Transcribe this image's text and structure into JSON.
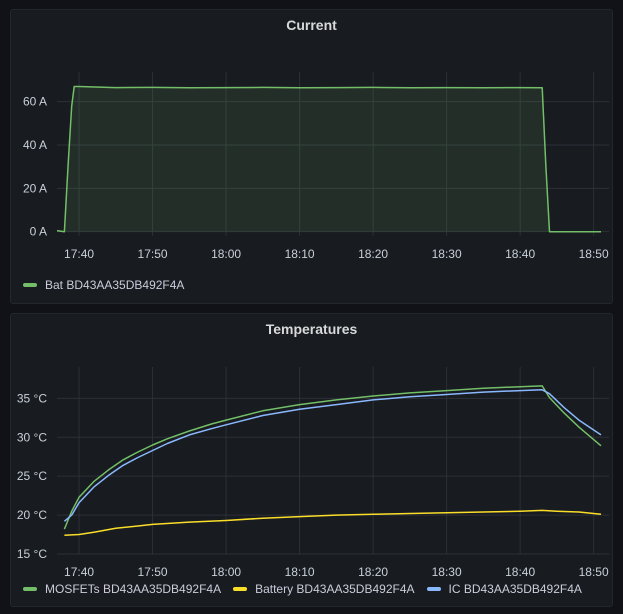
{
  "colors": {
    "green": "#73bf69",
    "yellow": "#fade2a",
    "blue": "#8ab8ff",
    "grid": "#2c3038",
    "background": "#181b1f"
  },
  "chart_data": [
    {
      "type": "area",
      "title": "Current",
      "xlabel": "",
      "ylabel": "",
      "unit": "A",
      "x_ticks": [
        "17:40",
        "17:50",
        "18:00",
        "18:10",
        "18:20",
        "18:30",
        "18:40",
        "18:50"
      ],
      "y_ticks": [
        "0 A",
        "20 A",
        "40 A",
        "60 A"
      ],
      "xlim": [
        "17:37",
        "18:51"
      ],
      "ylim": [
        -2,
        70
      ],
      "grid": true,
      "legend_position": "bottom-left",
      "series": [
        {
          "name": "Bat BD43AA35DB492F4A",
          "color": "#73bf69",
          "x": [
            "17:37",
            "17:38",
            "17:38:30",
            "17:39",
            "17:39:20",
            "17:40",
            "17:45",
            "17:50",
            "17:55",
            "18:00",
            "18:05",
            "18:10",
            "18:15",
            "18:20",
            "18:25",
            "18:30",
            "18:35",
            "18:40",
            "18:43",
            "18:43:30",
            "18:44",
            "18:45",
            "18:50",
            "18:51"
          ],
          "values": [
            0.5,
            0,
            30,
            58,
            67,
            67,
            66.5,
            66.6,
            66.4,
            66.5,
            66.6,
            66.4,
            66.5,
            66.6,
            66.4,
            66.5,
            66.4,
            66.5,
            66.4,
            30,
            0,
            0,
            0,
            0
          ]
        }
      ]
    },
    {
      "type": "line",
      "title": "Temperatures",
      "xlabel": "",
      "ylabel": "",
      "unit": "°C",
      "x_ticks": [
        "17:40",
        "17:50",
        "18:00",
        "18:10",
        "18:20",
        "18:30",
        "18:40",
        "18:50"
      ],
      "y_ticks": [
        "15 °C",
        "20 °C",
        "25 °C",
        "30 °C",
        "35 °C"
      ],
      "xlim": [
        "17:37",
        "18:51"
      ],
      "ylim": [
        15,
        38
      ],
      "grid": true,
      "legend_position": "bottom-left",
      "series": [
        {
          "name": "MOSFETs BD43AA35DB492F4A",
          "color": "#73bf69",
          "x": [
            "17:38",
            "17:39",
            "17:40",
            "17:42",
            "17:44",
            "17:46",
            "17:48",
            "17:50",
            "17:52",
            "17:55",
            "17:58",
            "18:00",
            "18:05",
            "18:10",
            "18:15",
            "18:20",
            "18:25",
            "18:30",
            "18:35",
            "18:40",
            "18:43",
            "18:44",
            "18:46",
            "18:48",
            "18:51"
          ],
          "values": [
            18.2,
            20.5,
            22.3,
            24.3,
            25.8,
            27.1,
            28.1,
            29.0,
            29.8,
            30.8,
            31.7,
            32.2,
            33.4,
            34.2,
            34.8,
            35.3,
            35.7,
            36.0,
            36.3,
            36.5,
            36.6,
            35.1,
            33.1,
            31.3,
            28.9
          ]
        },
        {
          "name": "Battery BD43AA35DB492F4A",
          "color": "#fade2a",
          "x": [
            "17:38",
            "17:40",
            "17:42",
            "17:45",
            "17:48",
            "17:50",
            "17:55",
            "18:00",
            "18:05",
            "18:10",
            "18:15",
            "18:20",
            "18:25",
            "18:30",
            "18:35",
            "18:40",
            "18:43",
            "18:45",
            "18:48",
            "18:51"
          ],
          "values": [
            17.4,
            17.5,
            17.8,
            18.3,
            18.6,
            18.8,
            19.1,
            19.3,
            19.6,
            19.8,
            20.0,
            20.1,
            20.2,
            20.3,
            20.4,
            20.5,
            20.6,
            20.5,
            20.4,
            20.1
          ]
        },
        {
          "name": "IC BD43AA35DB492F4A",
          "color": "#8ab8ff",
          "x": [
            "17:38",
            "17:39",
            "17:40",
            "17:42",
            "17:44",
            "17:46",
            "17:48",
            "17:50",
            "17:52",
            "17:55",
            "17:58",
            "18:00",
            "18:05",
            "18:10",
            "18:15",
            "18:20",
            "18:25",
            "18:30",
            "18:35",
            "18:40",
            "18:43",
            "18:44",
            "18:46",
            "18:48",
            "18:51"
          ],
          "values": [
            19.2,
            20.0,
            21.6,
            23.6,
            25.1,
            26.4,
            27.4,
            28.3,
            29.2,
            30.3,
            31.1,
            31.6,
            32.8,
            33.6,
            34.2,
            34.8,
            35.2,
            35.5,
            35.8,
            36.0,
            36.1,
            35.6,
            33.8,
            32.2,
            30.3
          ]
        }
      ]
    }
  ]
}
